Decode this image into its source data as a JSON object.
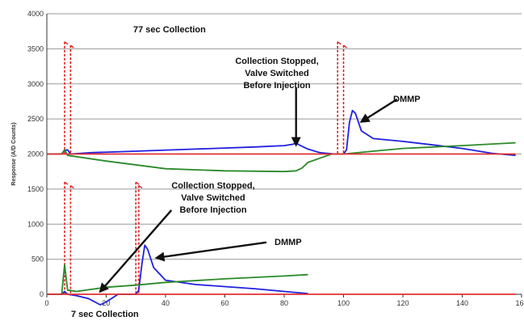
{
  "chart_data": {
    "type": "line",
    "ylabel": "Response (A/D Counts)",
    "y_ticks": [
      "0",
      "500",
      "1000",
      "1500",
      "2000",
      "2500",
      "3000",
      "3500",
      "4000"
    ],
    "x_ticks": [
      "0",
      "20",
      "40",
      "60",
      "80",
      "100",
      "120",
      "140",
      "160"
    ],
    "xlim": [
      0,
      160
    ],
    "ylim": [
      0,
      4000
    ],
    "grid": "horizontal",
    "annotations": [
      {
        "id": "top_title",
        "lines": [
          "77 sec Collection"
        ]
      },
      {
        "id": "top_stopped",
        "lines": [
          "Collection Stopped,",
          "Valve Switched",
          "Before Injection"
        ]
      },
      {
        "id": "top_dmmp",
        "lines": [
          "DMMP"
        ]
      },
      {
        "id": "bottom_stopped",
        "lines": [
          "Collection Stopped,",
          "Valve Switched",
          "Before Injection"
        ]
      },
      {
        "id": "bottom_dmmp",
        "lines": [
          "DMMP"
        ]
      },
      {
        "id": "bottom_title",
        "lines": [
          "7 sec Collection"
        ]
      }
    ],
    "series": [
      {
        "color": "#2020e0",
        "values": [
          [
            0,
            2000
          ],
          [
            5,
            2000
          ],
          [
            6,
            2050
          ],
          [
            7,
            2060
          ],
          [
            8,
            2000
          ],
          [
            15,
            2020
          ],
          [
            30,
            2040
          ],
          [
            50,
            2070
          ],
          [
            70,
            2100
          ],
          [
            80,
            2120
          ],
          [
            83,
            2140
          ],
          [
            84,
            2160
          ],
          [
            85,
            2130
          ],
          [
            88,
            2070
          ],
          [
            92,
            2020
          ],
          [
            97,
            2000
          ],
          [
            100,
            2000
          ],
          [
            101,
            2060
          ],
          [
            102,
            2450
          ],
          [
            103,
            2620
          ],
          [
            104,
            2580
          ],
          [
            106,
            2330
          ],
          [
            110,
            2220
          ],
          [
            120,
            2180
          ],
          [
            130,
            2130
          ],
          [
            140,
            2080
          ],
          [
            150,
            2010
          ],
          [
            158,
            1980
          ]
        ]
      },
      {
        "color": "#2a8a2a",
        "values": [
          [
            0,
            2000
          ],
          [
            5,
            2000
          ],
          [
            6,
            2060
          ],
          [
            7,
            1980
          ],
          [
            20,
            1900
          ],
          [
            40,
            1790
          ],
          [
            60,
            1760
          ],
          [
            80,
            1750
          ],
          [
            84,
            1760
          ],
          [
            86,
            1800
          ],
          [
            88,
            1880
          ],
          [
            92,
            1940
          ],
          [
            96,
            2000
          ],
          [
            100,
            2000
          ],
          [
            110,
            2040
          ],
          [
            120,
            2080
          ],
          [
            140,
            2120
          ],
          [
            158,
            2160
          ]
        ]
      },
      {
        "color": "#e03030",
        "values": [
          [
            0,
            2000
          ],
          [
            158,
            2000
          ]
        ]
      },
      {
        "color": "#2020e0",
        "values": [
          [
            0,
            0
          ],
          [
            5,
            0
          ],
          [
            6,
            40
          ],
          [
            7,
            0
          ],
          [
            10,
            -20
          ],
          [
            14,
            -60
          ],
          [
            18,
            -150
          ],
          [
            20,
            -110
          ],
          [
            24,
            0
          ],
          [
            28,
            0
          ],
          [
            30,
            0
          ],
          [
            31,
            60
          ],
          [
            32,
            420
          ],
          [
            33,
            700
          ],
          [
            34,
            640
          ],
          [
            36,
            380
          ],
          [
            40,
            200
          ],
          [
            50,
            140
          ],
          [
            60,
            110
          ],
          [
            70,
            80
          ],
          [
            80,
            40
          ],
          [
            88,
            10
          ]
        ]
      },
      {
        "color": "#2a8a2a",
        "values": [
          [
            0,
            0
          ],
          [
            5,
            0
          ],
          [
            6,
            420
          ],
          [
            7,
            60
          ],
          [
            10,
            40
          ],
          [
            20,
            100
          ],
          [
            30,
            130
          ],
          [
            40,
            170
          ],
          [
            60,
            220
          ],
          [
            80,
            260
          ],
          [
            88,
            280
          ]
        ]
      },
      {
        "color": "#e03030",
        "values": [
          [
            0,
            0
          ],
          [
            158,
            0
          ]
        ]
      }
    ],
    "valve_markers": [
      {
        "x": 6,
        "y_top": 3600,
        "y_bottom": 2000
      },
      {
        "x": 8,
        "y_top": 3550,
        "y_bottom": 2000
      },
      {
        "x": 98,
        "y_top": 3600,
        "y_bottom": 2000
      },
      {
        "x": 100,
        "y_top": 3550,
        "y_bottom": 2000
      },
      {
        "x": 6,
        "y_top": 1600,
        "y_bottom": 0
      },
      {
        "x": 8,
        "y_top": 1550,
        "y_bottom": 0
      },
      {
        "x": 30,
        "y_top": 1600,
        "y_bottom": 0
      },
      {
        "x": 31,
        "y_top": 1550,
        "y_bottom": 0
      }
    ],
    "arrows": [
      {
        "id": "top_stopped_arrow",
        "from": [
          84,
          2950
        ],
        "to": [
          84,
          2130
        ]
      },
      {
        "id": "top_dmmp_arrow",
        "from": [
          118,
          2780
        ],
        "to": [
          106,
          2460
        ]
      },
      {
        "id": "bottom_stopped_arrow",
        "from": [
          42,
          1200
        ],
        "to": [
          18,
          40
        ]
      },
      {
        "id": "bottom_dmmp_arrow",
        "from": [
          74,
          740
        ],
        "to": [
          37,
          520
        ]
      }
    ]
  }
}
